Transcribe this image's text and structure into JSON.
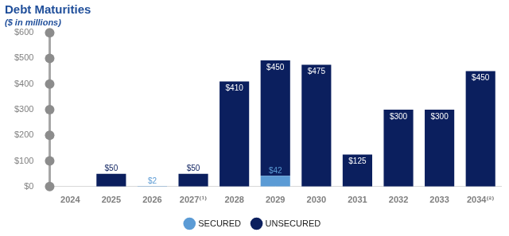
{
  "chart_data": {
    "type": "bar",
    "title": "Debt Maturities",
    "subtitle": "($ in millions)",
    "categories": [
      "2024",
      "2025",
      "2026",
      "2027⁽¹⁾",
      "2028",
      "2029",
      "2030",
      "2031",
      "2032",
      "2033",
      "2034⁽²⁾"
    ],
    "series": [
      {
        "name": "UNSECURED",
        "color": "#0b1f5e",
        "values": [
          null,
          50,
          null,
          50,
          410,
          450,
          475,
          125,
          300,
          300,
          450
        ],
        "value_labels": [
          null,
          "$50",
          null,
          "$50",
          "$410",
          "$450",
          "$475",
          "$125",
          "$300",
          "$300",
          "$450"
        ]
      },
      {
        "name": "SECURED",
        "color": "#5b9bd5",
        "values": [
          null,
          null,
          2,
          null,
          null,
          42,
          null,
          null,
          null,
          null,
          null
        ],
        "value_labels": [
          null,
          null,
          "$2",
          null,
          null,
          "$42",
          null,
          null,
          null,
          null,
          null
        ]
      }
    ],
    "ylim": [
      0,
      600
    ],
    "yticks": [
      {
        "value": 0,
        "label": "$0"
      },
      {
        "value": 100,
        "label": "$100"
      },
      {
        "value": 200,
        "label": "$200"
      },
      {
        "value": 300,
        "label": "$300"
      },
      {
        "value": 400,
        "label": "$400"
      },
      {
        "value": 500,
        "label": "$500"
      },
      {
        "value": 600,
        "label": "$600"
      }
    ],
    "grid": false,
    "legend": "bottom",
    "stacked": true,
    "data_labels": true
  }
}
